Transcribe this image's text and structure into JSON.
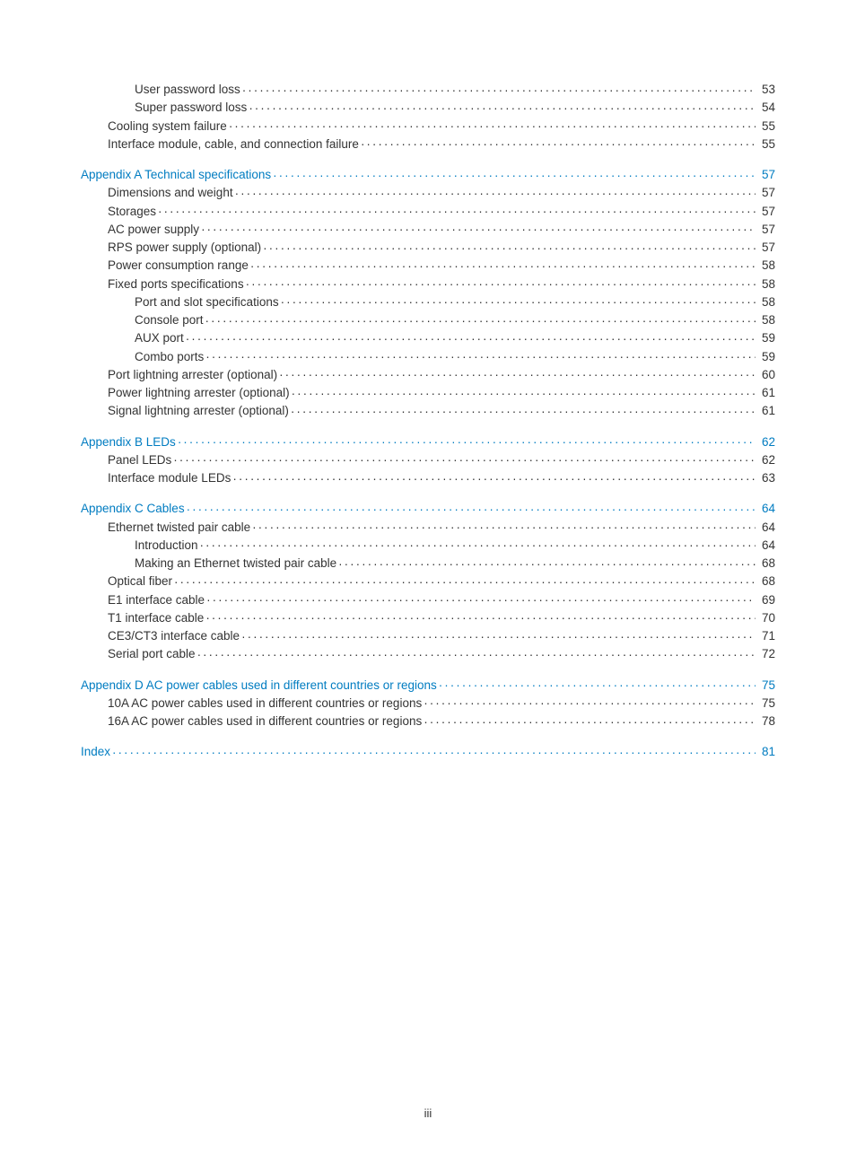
{
  "footer": "iii",
  "link_color": "#007cc1",
  "body_color": "#333333",
  "toc_groups": [
    {
      "items": [
        {
          "level": 2,
          "label": "User password loss",
          "page": "53",
          "heading": false
        },
        {
          "level": 2,
          "label": "Super password loss",
          "page": "54",
          "heading": false
        },
        {
          "level": 1,
          "label": "Cooling system failure",
          "page": "55",
          "heading": false
        },
        {
          "level": 1,
          "label": "Interface module, cable, and connection failure",
          "page": "55",
          "heading": false
        }
      ]
    },
    {
      "items": [
        {
          "level": 0,
          "label": "Appendix A Technical specifications",
          "page": "57",
          "heading": true
        },
        {
          "level": 1,
          "label": "Dimensions and weight",
          "page": "57",
          "heading": false
        },
        {
          "level": 1,
          "label": "Storages",
          "page": "57",
          "heading": false
        },
        {
          "level": 1,
          "label": "AC power supply",
          "page": "57",
          "heading": false
        },
        {
          "level": 1,
          "label": "RPS power supply (optional)",
          "page": "57",
          "heading": false
        },
        {
          "level": 1,
          "label": "Power consumption range",
          "page": "58",
          "heading": false
        },
        {
          "level": 1,
          "label": "Fixed ports specifications",
          "page": "58",
          "heading": false
        },
        {
          "level": 2,
          "label": "Port and slot specifications",
          "page": "58",
          "heading": false
        },
        {
          "level": 2,
          "label": "Console port",
          "page": "58",
          "heading": false
        },
        {
          "level": 2,
          "label": "AUX port",
          "page": "59",
          "heading": false
        },
        {
          "level": 2,
          "label": "Combo ports",
          "page": "59",
          "heading": false
        },
        {
          "level": 1,
          "label": "Port lightning arrester (optional)",
          "page": "60",
          "heading": false
        },
        {
          "level": 1,
          "label": "Power lightning arrester (optional)",
          "page": "61",
          "heading": false
        },
        {
          "level": 1,
          "label": "Signal lightning arrester (optional)",
          "page": "61",
          "heading": false
        }
      ]
    },
    {
      "items": [
        {
          "level": 0,
          "label": "Appendix B LEDs",
          "page": "62",
          "heading": true
        },
        {
          "level": 1,
          "label": "Panel LEDs",
          "page": "62",
          "heading": false
        },
        {
          "level": 1,
          "label": "Interface module LEDs",
          "page": "63",
          "heading": false
        }
      ]
    },
    {
      "items": [
        {
          "level": 0,
          "label": "Appendix C Cables",
          "page": "64",
          "heading": true
        },
        {
          "level": 1,
          "label": "Ethernet twisted pair cable",
          "page": "64",
          "heading": false
        },
        {
          "level": 2,
          "label": "Introduction",
          "page": "64",
          "heading": false
        },
        {
          "level": 2,
          "label": "Making an Ethernet twisted pair cable",
          "page": "68",
          "heading": false
        },
        {
          "level": 1,
          "label": "Optical fiber",
          "page": "68",
          "heading": false
        },
        {
          "level": 1,
          "label": "E1 interface cable",
          "page": "69",
          "heading": false
        },
        {
          "level": 1,
          "label": "T1 interface cable",
          "page": "70",
          "heading": false
        },
        {
          "level": 1,
          "label": "CE3/CT3 interface cable",
          "page": "71",
          "heading": false
        },
        {
          "level": 1,
          "label": "Serial port cable",
          "page": "72",
          "heading": false
        }
      ]
    },
    {
      "items": [
        {
          "level": 0,
          "label": "Appendix D AC power cables used in different countries or regions",
          "page": "75",
          "heading": true
        },
        {
          "level": 1,
          "label": "10A AC power cables used in different countries or regions",
          "page": "75",
          "heading": false
        },
        {
          "level": 1,
          "label": "16A AC power cables used in different countries or regions",
          "page": "78",
          "heading": false
        }
      ]
    },
    {
      "items": [
        {
          "level": 0,
          "label": "Index",
          "page": "81",
          "heading": true
        }
      ]
    }
  ]
}
